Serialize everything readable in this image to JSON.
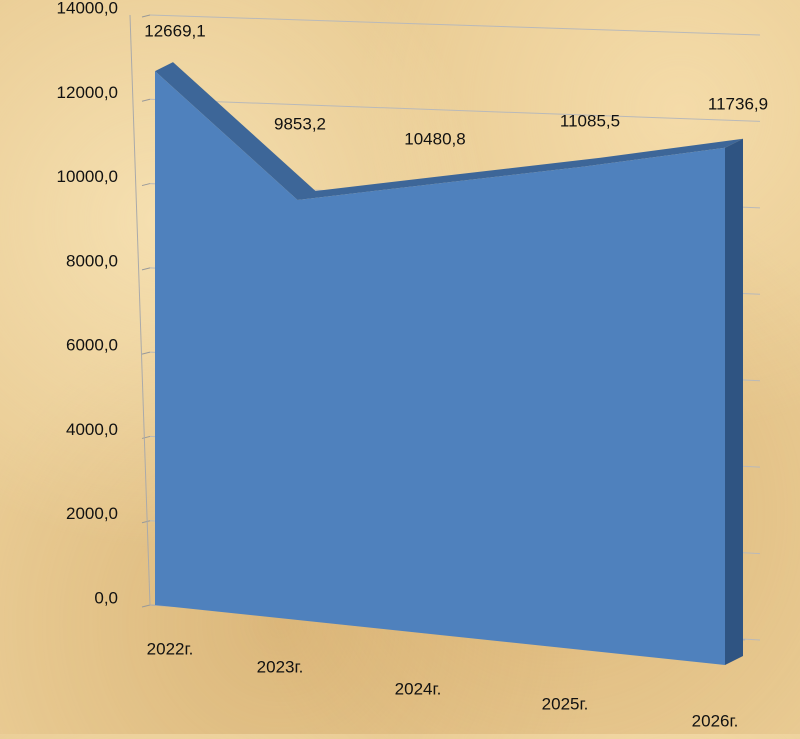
{
  "chart_data": {
    "type": "area",
    "categories": [
      "2022г.",
      "2023г.",
      "2024г.",
      "2025г.",
      "2026г."
    ],
    "values": [
      12669.1,
      9853.2,
      10480.8,
      11085.5,
      11736.9
    ],
    "value_labels": [
      "12669,1",
      "9853,2",
      "10480,8",
      "11085,5",
      "11736,9"
    ],
    "color": "#4f81bd",
    "ylim": [
      0,
      14000
    ],
    "yticks": [
      {
        "value": 0,
        "label": "0,0"
      },
      {
        "value": 2000,
        "label": "2000,0"
      },
      {
        "value": 4000,
        "label": "4000,0"
      },
      {
        "value": 6000,
        "label": "6000,0"
      },
      {
        "value": 8000,
        "label": "8000,0"
      },
      {
        "value": 10000,
        "label": "10000,0"
      },
      {
        "value": 12000,
        "label": "12000,0"
      },
      {
        "value": 14000,
        "label": "14000,0"
      }
    ],
    "grid": true
  }
}
